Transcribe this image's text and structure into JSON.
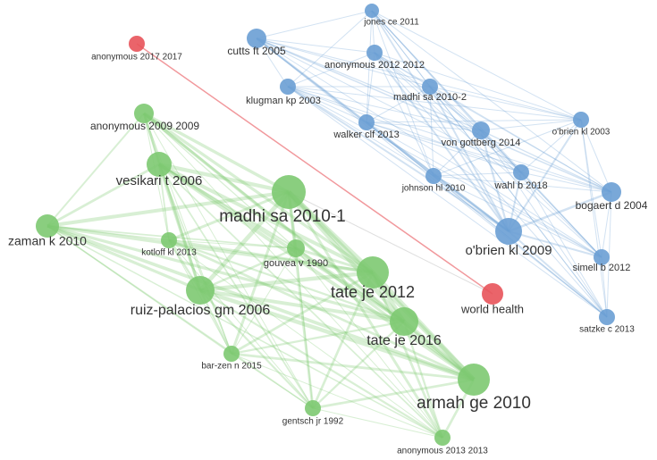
{
  "nodes": [
    {
      "label": "jones ce 2011",
      "color": "#6a9fd4"
    },
    {
      "label": "cutts ft 2005",
      "color": "#6a9fd4"
    },
    {
      "label": "anonymous 2012 2012",
      "color": "#6a9fd4"
    },
    {
      "label": "klugman kp 2003",
      "color": "#6a9fd4"
    },
    {
      "label": "madhi sa 2010-2",
      "color": "#6a9fd4"
    },
    {
      "label": "walker clf 2013",
      "color": "#6a9fd4"
    },
    {
      "label": "von gottberg 2014",
      "color": "#6a9fd4"
    },
    {
      "label": "o'brien kl 2003",
      "color": "#6a9fd4"
    },
    {
      "label": "johnson hl 2010",
      "color": "#6a9fd4"
    },
    {
      "label": "wahl b 2018",
      "color": "#6a9fd4"
    },
    {
      "label": "bogaert d 2004",
      "color": "#6a9fd4"
    },
    {
      "label": "o'brien kl 2009",
      "color": "#6a9fd4"
    },
    {
      "label": "simell b 2012",
      "color": "#6a9fd4"
    },
    {
      "label": "satzke c 2013",
      "color": "#6a9fd4"
    },
    {
      "label": "anonymous 2017 2017",
      "color": "#e8535a"
    },
    {
      "label": "world health",
      "color": "#e8535a"
    },
    {
      "label": "anonymous 2009 2009",
      "color": "#7dc971"
    },
    {
      "label": "vesikari t 2006",
      "color": "#7dc971"
    },
    {
      "label": "madhi sa 2010-1",
      "color": "#7dc971"
    },
    {
      "label": "zaman k 2010",
      "color": "#7dc971"
    },
    {
      "label": "kotloff kl 2013",
      "color": "#7dc971"
    },
    {
      "label": "gouvea v 1990",
      "color": "#7dc971"
    },
    {
      "label": "tate je 2012",
      "color": "#7dc971"
    },
    {
      "label": "ruiz-palacios gm 2006",
      "color": "#7dc971"
    },
    {
      "label": "tate je 2016",
      "color": "#7dc971"
    },
    {
      "label": "bar-zen n 2015",
      "color": "#7dc971"
    },
    {
      "label": "armah ge 2010",
      "color": "#7dc971"
    },
    {
      "label": "gentsch jr 1992",
      "color": "#7dc971"
    },
    {
      "label": "anonymous 2013 2013",
      "color": "#7dc971"
    }
  ]
}
